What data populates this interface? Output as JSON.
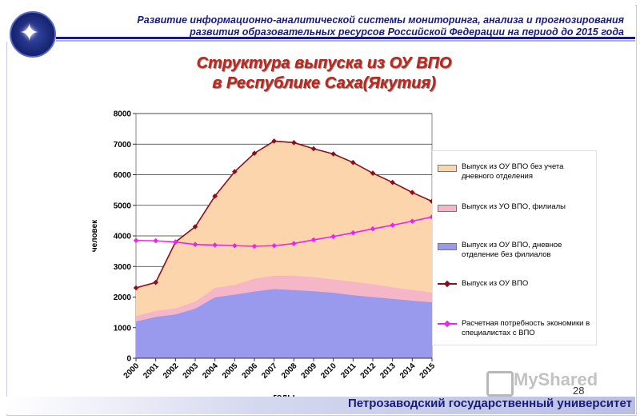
{
  "header": {
    "line1": "Развитие информационно-аналитической системы мониторинга, анализа и прогнозирования",
    "line2": "развития образовательных ресурсов Российской Федерации на период до 2015 года"
  },
  "title": {
    "line1": "Структура выпуска из ОУ ВПО",
    "line2": "в Республике Саха(Якутия)"
  },
  "footer": {
    "university": "Петрозаводский государственный университет",
    "page_number": "28",
    "watermark": "MyShared"
  },
  "colors": {
    "area_total": "#fcd5ac",
    "area_branches": "#f5b7c8",
    "area_day": "#9999ee",
    "line_total": "#8b0f1a",
    "line_need": "#ee22ee",
    "title": "#c0241a",
    "header": "#1a1a7a"
  },
  "chart_data": {
    "type": "area",
    "xlabel": "годы",
    "ylabel": "человек",
    "ylim": [
      0,
      8000
    ],
    "yticks": [
      0,
      1000,
      2000,
      3000,
      4000,
      5000,
      6000,
      7000,
      8000
    ],
    "x": [
      "2000",
      "2001",
      "2002",
      "2003",
      "2004",
      "2005",
      "2006",
      "2007",
      "2008",
      "2009",
      "2010",
      "2011",
      "2012",
      "2013",
      "2014",
      "2015"
    ],
    "grid": true,
    "legend_position": "right",
    "series": [
      {
        "name": "Выпуск из ОУ ВПО без учета дневного отделения",
        "kind": "area",
        "values": [
          2300,
          2480,
          3800,
          4300,
          5300,
          6100,
          6700,
          7100,
          7050,
          6850,
          6680,
          6400,
          6050,
          5750,
          5420,
          5130
        ]
      },
      {
        "name": "Выпуск из УО ВПО, филиалы",
        "kind": "area",
        "values": [
          1380,
          1550,
          1630,
          1850,
          2300,
          2400,
          2600,
          2700,
          2700,
          2650,
          2580,
          2500,
          2420,
          2320,
          2230,
          2150
        ]
      },
      {
        "name": "Выпуск из ОУ ВПО, дневное отделение без филиалов",
        "kind": "area",
        "values": [
          1200,
          1350,
          1430,
          1620,
          1990,
          2080,
          2180,
          2260,
          2230,
          2190,
          2140,
          2060,
          2000,
          1940,
          1880,
          1830
        ]
      },
      {
        "name": "Выпуск из ОУ ВПО",
        "kind": "line",
        "marker": "diamond",
        "values": [
          2300,
          2480,
          3800,
          4300,
          5300,
          6100,
          6700,
          7100,
          7050,
          6850,
          6680,
          6400,
          6050,
          5750,
          5420,
          5130
        ]
      },
      {
        "name": "Расчетная потребность экономики в специалистах с ВПО",
        "kind": "line",
        "marker": "diamond",
        "values": [
          3850,
          3840,
          3800,
          3720,
          3700,
          3680,
          3660,
          3680,
          3750,
          3870,
          3980,
          4100,
          4230,
          4350,
          4480,
          4620
        ]
      }
    ]
  }
}
